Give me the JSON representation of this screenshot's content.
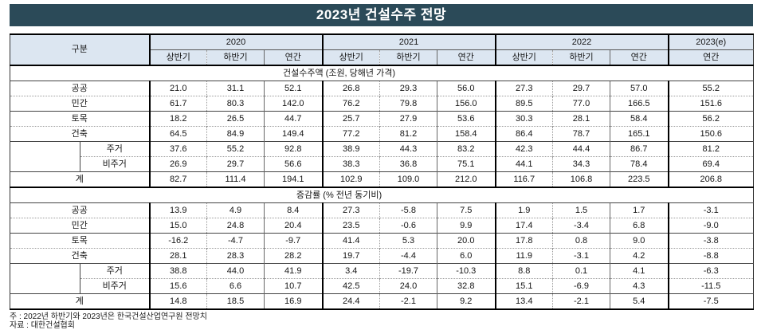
{
  "title": "2023년 건설수주 전망",
  "colors": {
    "title_bg": "#2b4a58",
    "title_text": "#ffffff",
    "header_bg": "#dce6f1"
  },
  "table": {
    "corner": "구분",
    "year_groups": [
      "2020",
      "2021",
      "2022",
      "2023(e)"
    ],
    "sub_cols": [
      "상반기",
      "하반기",
      "연간",
      "상반기",
      "하반기",
      "연간",
      "상반기",
      "하반기",
      "연간",
      "연간"
    ],
    "total_label": "계"
  },
  "chart_data": {
    "type": "table",
    "title": "2023년 건설수주 전망",
    "column_groups": [
      "2020",
      "2021",
      "2022",
      "2023(e)"
    ],
    "columns": [
      "2020 상반기",
      "2020 하반기",
      "2020 연간",
      "2021 상반기",
      "2021 하반기",
      "2021 연간",
      "2022 상반기",
      "2022 하반기",
      "2022 연간",
      "2023(e) 연간"
    ],
    "sections": [
      {
        "title": "건설수주액 (조원, 당해년 가격)",
        "rows": [
          {
            "label": "공공",
            "sub": false,
            "values": [
              21.0,
              31.1,
              52.1,
              26.8,
              29.3,
              56.0,
              27.3,
              29.7,
              57.0,
              55.2
            ]
          },
          {
            "label": "민간",
            "sub": false,
            "values": [
              61.7,
              80.3,
              142.0,
              76.2,
              79.8,
              156.0,
              89.5,
              77.0,
              166.5,
              151.6
            ]
          },
          {
            "label": "토목",
            "sub": false,
            "values": [
              18.2,
              26.5,
              44.7,
              25.7,
              27.9,
              53.6,
              30.3,
              28.1,
              58.4,
              56.2
            ]
          },
          {
            "label": "건축",
            "sub": false,
            "values": [
              64.5,
              84.9,
              149.4,
              77.2,
              81.2,
              158.4,
              86.4,
              78.7,
              165.1,
              150.6
            ]
          },
          {
            "label": "주거",
            "sub": true,
            "values": [
              37.6,
              55.2,
              92.8,
              38.9,
              44.3,
              83.2,
              42.3,
              44.4,
              86.7,
              81.2
            ]
          },
          {
            "label": "비주거",
            "sub": true,
            "values": [
              26.9,
              29.7,
              56.6,
              38.3,
              36.8,
              75.1,
              44.1,
              34.3,
              78.4,
              69.4
            ]
          },
          {
            "label": "계",
            "sub": false,
            "values": [
              82.7,
              111.4,
              194.1,
              102.9,
              109.0,
              212.0,
              116.7,
              106.8,
              223.5,
              206.8
            ]
          }
        ]
      },
      {
        "title": "증감률 (% 전년 동기비)",
        "rows": [
          {
            "label": "공공",
            "sub": false,
            "values": [
              13.9,
              4.9,
              8.4,
              27.3,
              -5.8,
              7.5,
              1.9,
              1.5,
              1.7,
              -3.1
            ]
          },
          {
            "label": "민간",
            "sub": false,
            "values": [
              15.0,
              24.8,
              20.4,
              23.5,
              -0.6,
              9.9,
              17.4,
              -3.4,
              6.8,
              -9.0
            ]
          },
          {
            "label": "토목",
            "sub": false,
            "values": [
              -16.2,
              -4.7,
              -9.7,
              41.4,
              5.3,
              20.0,
              17.8,
              0.8,
              9.0,
              -3.8
            ]
          },
          {
            "label": "건축",
            "sub": false,
            "values": [
              28.1,
              28.3,
              28.2,
              19.7,
              -4.4,
              6.0,
              11.9,
              -3.1,
              4.2,
              -8.8
            ]
          },
          {
            "label": "주거",
            "sub": true,
            "values": [
              38.8,
              44.0,
              41.9,
              3.4,
              -19.7,
              -10.3,
              8.8,
              0.1,
              4.1,
              -6.3
            ]
          },
          {
            "label": "비주거",
            "sub": true,
            "values": [
              15.6,
              6.6,
              10.7,
              42.5,
              24.0,
              32.8,
              15.1,
              -6.9,
              4.3,
              -11.5
            ]
          },
          {
            "label": "계",
            "sub": false,
            "values": [
              14.8,
              18.5,
              16.9,
              24.4,
              -2.1,
              9.2,
              13.4,
              -2.1,
              5.4,
              -7.5
            ]
          }
        ]
      }
    ]
  },
  "footnotes": [
    "주 : 2022년 하반기와 2023년은 한국건설산업연구원 전망치",
    "자료 : 대한건설협회"
  ]
}
